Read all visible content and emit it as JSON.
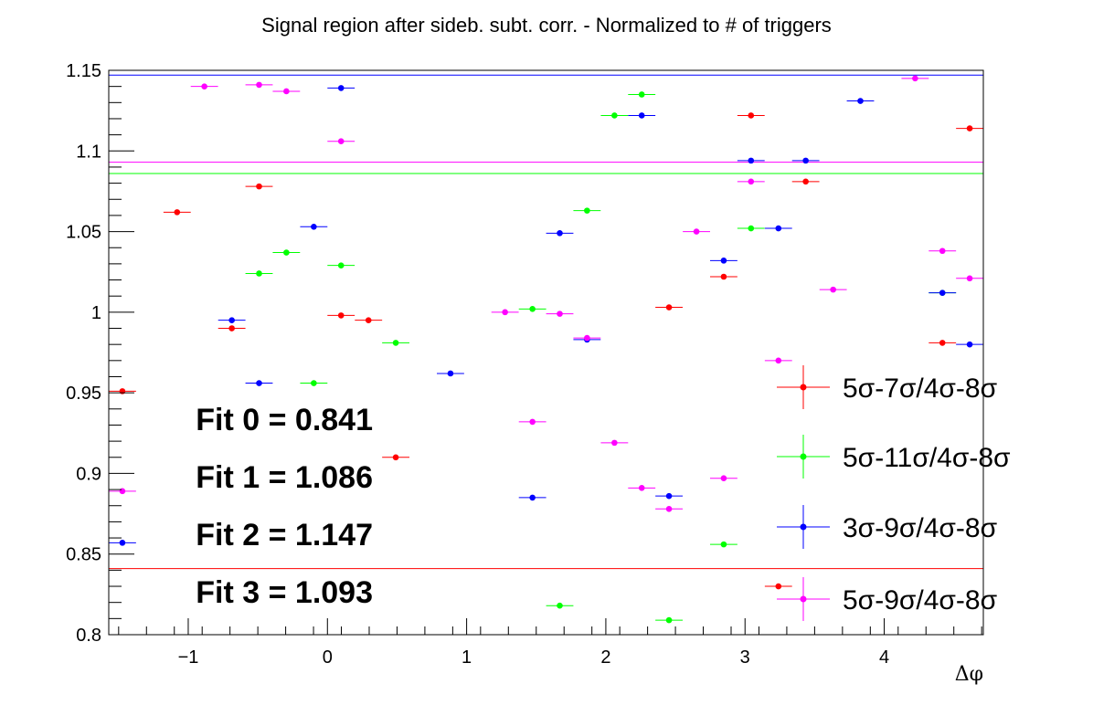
{
  "chart_data": {
    "type": "scatter",
    "title": "Signal region after sideb. subt. corr. - Normalized to # of triggers",
    "xlabel": "Δφ",
    "ylabel": "",
    "xlim": [
      -1.571,
      4.712
    ],
    "ylim": [
      0.8,
      1.15
    ],
    "x_ticks": [
      -1,
      0,
      1,
      2,
      3,
      4
    ],
    "x_tick_labels": [
      "−1",
      "0",
      "1",
      "2",
      "3",
      "4"
    ],
    "y_ticks": [
      0.8,
      0.85,
      0.9,
      0.95,
      1.0,
      1.05,
      1.1,
      1.15
    ],
    "y_tick_labels": [
      "0.8",
      "0.85",
      "0.9",
      "0.95",
      "1",
      "1.05",
      "1.1",
      "1.15"
    ],
    "bin_width": 0.196,
    "series": [
      {
        "name": "5σ-7σ/4σ-8σ",
        "color": "#ff0000",
        "fit_value": 0.841,
        "points": [
          [
            -1.473,
            0.951
          ],
          [
            -1.08,
            1.062
          ],
          [
            -0.687,
            0.99
          ],
          [
            -0.491,
            1.078
          ],
          [
            0.098,
            0.998
          ],
          [
            0.295,
            0.995
          ],
          [
            0.491,
            0.91
          ],
          [
            2.454,
            1.003
          ],
          [
            2.847,
            1.022
          ],
          [
            3.043,
            1.122
          ],
          [
            3.24,
            0.83
          ],
          [
            3.436,
            1.081
          ],
          [
            4.418,
            0.981
          ],
          [
            4.614,
            1.114
          ]
        ]
      },
      {
        "name": "5σ-11σ/4σ-8σ",
        "color": "#00ff00",
        "fit_value": 1.086,
        "points": [
          [
            -0.491,
            1.024
          ],
          [
            -0.295,
            1.037
          ],
          [
            -0.098,
            0.956
          ],
          [
            0.098,
            1.029
          ],
          [
            0.491,
            0.981
          ],
          [
            1.473,
            1.002
          ],
          [
            1.669,
            0.818
          ],
          [
            1.865,
            1.063
          ],
          [
            2.062,
            1.122
          ],
          [
            2.258,
            1.135
          ],
          [
            2.454,
            0.809
          ],
          [
            2.847,
            0.856
          ],
          [
            3.043,
            1.052
          ],
          [
            4.418,
            1.012
          ]
        ]
      },
      {
        "name": "3σ-9σ/4σ-8σ",
        "color": "#0000ff",
        "fit_value": 1.147,
        "points": [
          [
            -1.473,
            0.857
          ],
          [
            -0.687,
            0.995
          ],
          [
            -0.491,
            0.956
          ],
          [
            -0.098,
            1.053
          ],
          [
            0.098,
            1.139
          ],
          [
            0.884,
            0.962
          ],
          [
            1.473,
            0.885
          ],
          [
            1.669,
            1.049
          ],
          [
            1.865,
            0.983
          ],
          [
            2.258,
            1.122
          ],
          [
            2.454,
            0.886
          ],
          [
            2.847,
            1.032
          ],
          [
            3.043,
            1.094
          ],
          [
            3.24,
            1.052
          ],
          [
            3.436,
            1.094
          ],
          [
            3.829,
            1.131
          ],
          [
            4.418,
            1.012
          ],
          [
            4.614,
            0.98
          ]
        ]
      },
      {
        "name": "5σ-9σ/4σ-8σ",
        "color": "#ff00ff",
        "fit_value": 1.093,
        "points": [
          [
            -1.473,
            0.889
          ],
          [
            -0.884,
            1.14
          ],
          [
            -0.491,
            1.141
          ],
          [
            -0.295,
            1.137
          ],
          [
            0.098,
            1.106
          ],
          [
            1.276,
            1.0
          ],
          [
            1.473,
            0.932
          ],
          [
            1.669,
            0.999
          ],
          [
            1.865,
            0.984
          ],
          [
            2.062,
            0.919
          ],
          [
            2.258,
            0.891
          ],
          [
            2.454,
            0.878
          ],
          [
            2.651,
            1.05
          ],
          [
            2.847,
            0.897
          ],
          [
            3.043,
            1.081
          ],
          [
            3.24,
            0.97
          ],
          [
            3.633,
            1.014
          ],
          [
            4.222,
            1.145
          ],
          [
            4.418,
            1.038
          ],
          [
            4.614,
            1.021
          ]
        ]
      }
    ]
  },
  "fit_labels": [
    "Fit 0 = 0.841",
    "Fit 1 = 1.086",
    "Fit 2 = 1.147",
    "Fit 3 = 1.093"
  ],
  "legend": {
    "placement": "bottom-right",
    "entries": [
      "5σ-7σ/4σ-8σ",
      "5σ-11σ/4σ-8σ",
      "3σ-9σ/4σ-8σ",
      "5σ-9σ/4σ-8σ"
    ]
  }
}
